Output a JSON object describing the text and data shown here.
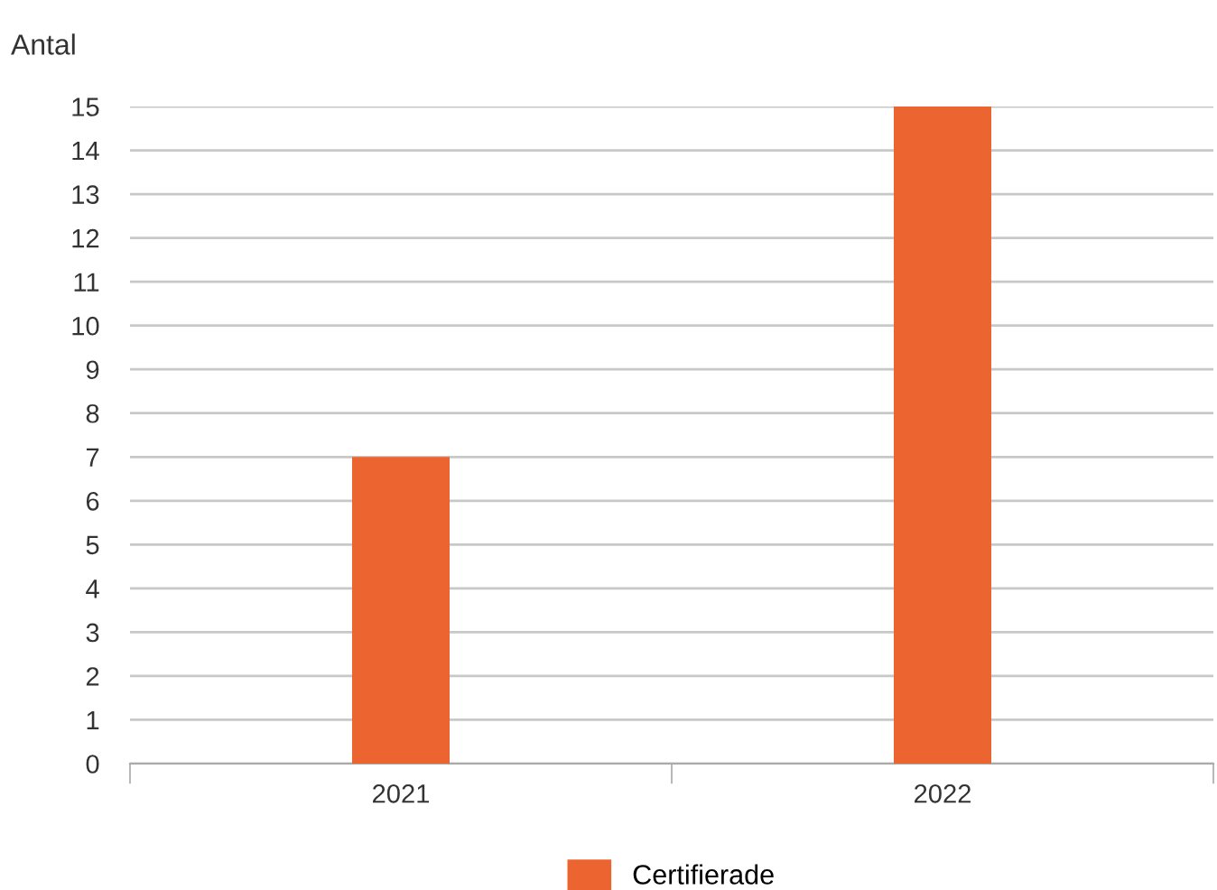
{
  "chart_data": {
    "type": "bar",
    "ylabel": "Antal",
    "categories": [
      "2021",
      "2022"
    ],
    "series": [
      {
        "name": "Certifierade",
        "color": "#ec6530",
        "values": [
          7,
          15
        ]
      }
    ],
    "ylim": [
      0,
      15
    ],
    "yticks": [
      0,
      1,
      2,
      3,
      4,
      5,
      6,
      7,
      8,
      9,
      10,
      11,
      12,
      13,
      14,
      15
    ],
    "grid": "y",
    "legend": "bottom"
  }
}
